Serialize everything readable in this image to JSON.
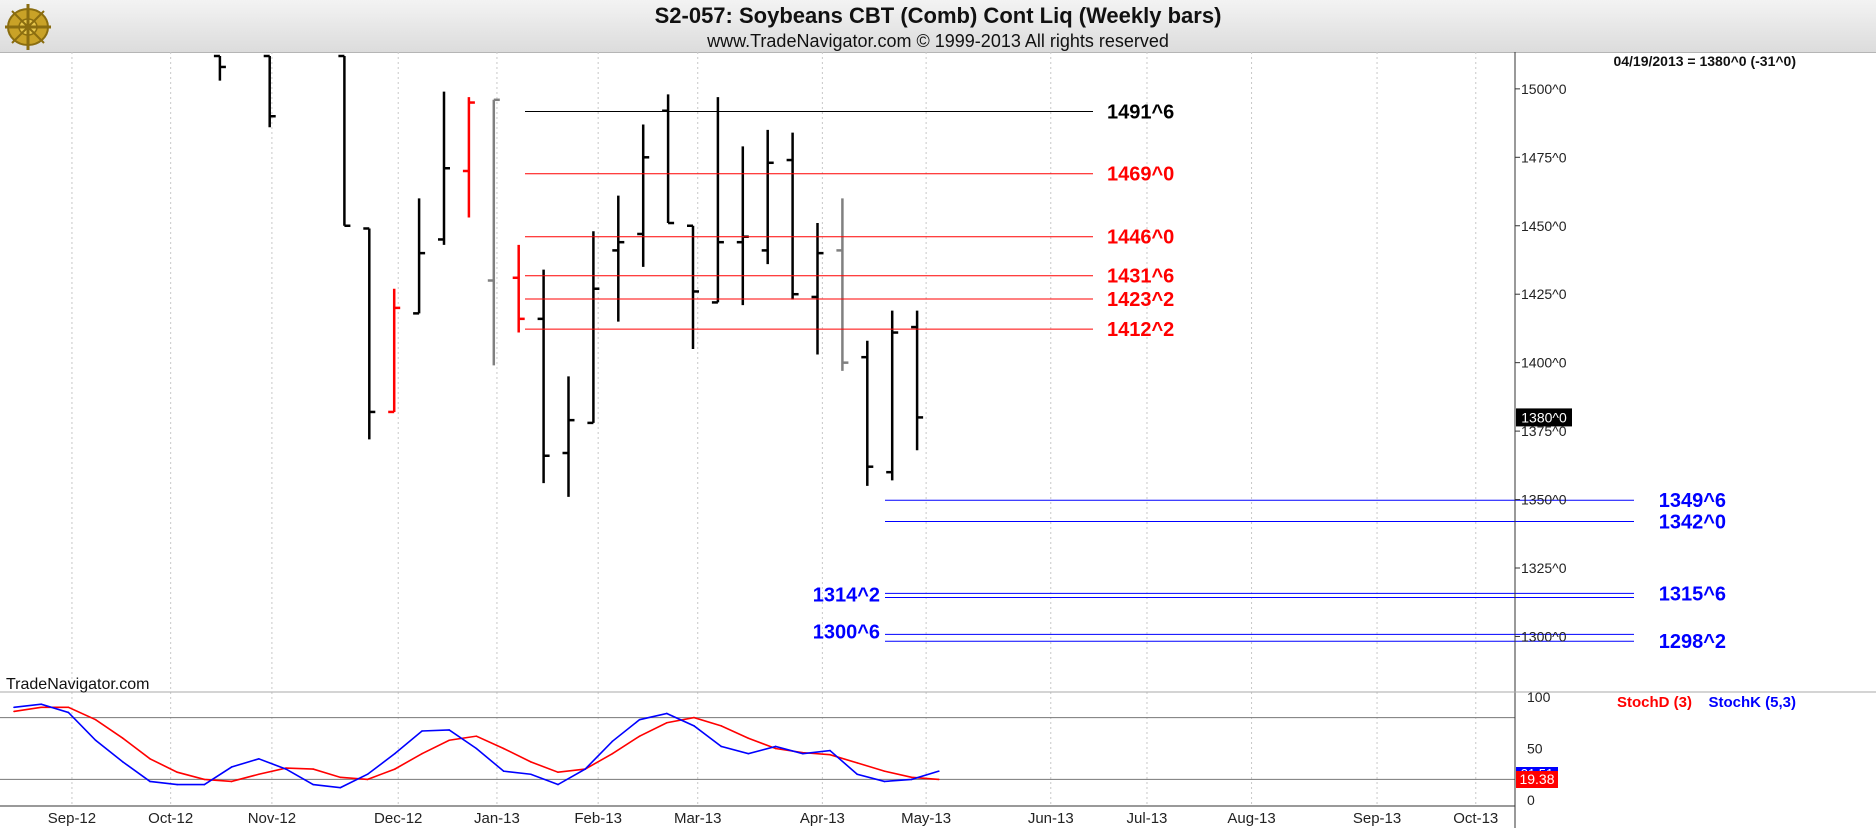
{
  "header": {
    "title": "S2-057:  Soybeans CBT (Comb) Cont Liq  (Weekly bars)",
    "subtitle": "www.TradeNavigator.com © 1999-2013 All rights reserved"
  },
  "last_price_info": "04/19/2013 = 1380^0 (-31^0)",
  "last_price_badge": "1380^0",
  "watermark": "TradeNavigator.com",
  "colors": {
    "up_bar": "#000000",
    "down_bar": "#ff0000",
    "neutral_bar": "#808080",
    "resistance": "#ff0000",
    "support": "#0000ff",
    "stoch_d": "#ff0000",
    "stoch_k": "#0000ff",
    "header_bg": "#e5e5e5"
  },
  "chart_data": [
    {
      "type": "ohlc",
      "title": "S2-057:  Soybeans CBT (Comb) Cont Liq  (Weekly bars)",
      "x_labels": [
        "Sep-12",
        "Oct-12",
        "Nov-12",
        "Dec-12",
        "Jan-13",
        "Feb-13",
        "Mar-13",
        "Apr-13",
        "May-13",
        "Jun-13",
        "Jul-13",
        "Aug-13",
        "Sep-13",
        "Oct-13"
      ],
      "y_ticks": [
        "1300^0",
        "1325^0",
        "1350^0",
        "1375^0",
        "1400^0",
        "1425^0",
        "1450^0",
        "1475^0",
        "1500^0"
      ],
      "ylim": [
        1283,
        1512
      ],
      "grid": "vertical dotted at each month",
      "bars": [
        {
          "week": 6,
          "open": 1512,
          "high": 1512,
          "low": 1503,
          "close": 1508,
          "color": "black"
        },
        {
          "week": 8,
          "open": 1512,
          "high": 1512,
          "low": 1486,
          "close": 1490,
          "color": "black"
        },
        {
          "week": 11,
          "open": 1512,
          "high": 1512,
          "low": 1450,
          "close": 1450,
          "color": "black"
        },
        {
          "week": 12,
          "open": 1449,
          "high": 1449,
          "low": 1372,
          "close": 1382,
          "color": "black"
        },
        {
          "week": 13,
          "open": 1382,
          "high": 1427,
          "low": 1382,
          "close": 1420,
          "color": "red"
        },
        {
          "week": 14,
          "open": 1418,
          "high": 1460,
          "low": 1418,
          "close": 1440,
          "color": "black"
        },
        {
          "week": 15,
          "open": 1445,
          "high": 1499,
          "low": 1443,
          "close": 1471,
          "color": "black"
        },
        {
          "week": 16,
          "open": 1470,
          "high": 1497,
          "low": 1453,
          "close": 1495,
          "color": "red"
        },
        {
          "week": 17,
          "open": 1430,
          "high": 1496,
          "low": 1399,
          "close": 1496,
          "color": "gray"
        },
        {
          "week": 18,
          "open": 1431,
          "high": 1443,
          "low": 1411,
          "close": 1416,
          "color": "red"
        },
        {
          "week": 19,
          "open": 1416,
          "high": 1434,
          "low": 1356,
          "close": 1366,
          "color": "black"
        },
        {
          "week": 20,
          "open": 1367,
          "high": 1395,
          "low": 1351,
          "close": 1379,
          "color": "black"
        },
        {
          "week": 21,
          "open": 1378,
          "high": 1448,
          "low": 1378,
          "close": 1427,
          "color": "black"
        },
        {
          "week": 22,
          "open": 1441,
          "high": 1461,
          "low": 1415,
          "close": 1444,
          "color": "black"
        },
        {
          "week": 23,
          "open": 1447,
          "high": 1487,
          "low": 1435,
          "close": 1475,
          "color": "black"
        },
        {
          "week": 24,
          "open": 1492,
          "high": 1498,
          "low": 1451,
          "close": 1451,
          "color": "black"
        },
        {
          "week": 25,
          "open": 1450,
          "high": 1450,
          "low": 1405,
          "close": 1426,
          "color": "black"
        },
        {
          "week": 26,
          "open": 1422,
          "high": 1497,
          "low": 1422,
          "close": 1444,
          "color": "black"
        },
        {
          "week": 27,
          "open": 1444,
          "high": 1479,
          "low": 1421,
          "close": 1446,
          "color": "black"
        },
        {
          "week": 28,
          "open": 1441,
          "high": 1485,
          "low": 1436,
          "close": 1473,
          "color": "black"
        },
        {
          "week": 29,
          "open": 1474,
          "high": 1484,
          "low": 1423,
          "close": 1425,
          "color": "black"
        },
        {
          "week": 30,
          "open": 1424,
          "high": 1451,
          "low": 1403,
          "close": 1440,
          "color": "black"
        },
        {
          "week": 31,
          "open": 1441,
          "high": 1460,
          "low": 1397,
          "close": 1400,
          "color": "gray"
        },
        {
          "week": 32,
          "open": 1402,
          "high": 1408,
          "low": 1355,
          "close": 1362,
          "color": "black"
        },
        {
          "week": 33,
          "open": 1360,
          "high": 1419,
          "low": 1357,
          "close": 1411,
          "color": "black"
        },
        {
          "week": 34,
          "open": 1413,
          "high": 1419,
          "low": 1368,
          "close": 1380,
          "color": "black"
        }
      ],
      "levels": [
        {
          "label": "1491^6",
          "value": 1491.75,
          "color": "black",
          "side": "right"
        },
        {
          "label": "1469^0",
          "value": 1469.0,
          "color": "red",
          "side": "right"
        },
        {
          "label": "1446^0",
          "value": 1446.0,
          "color": "red",
          "side": "right"
        },
        {
          "label": "1431^6",
          "value": 1431.75,
          "color": "red",
          "side": "right"
        },
        {
          "label": "1423^2",
          "value": 1423.25,
          "color": "red",
          "side": "right"
        },
        {
          "label": "1412^2",
          "value": 1412.25,
          "color": "red",
          "side": "right"
        },
        {
          "label": "1349^6",
          "value": 1349.75,
          "color": "blue",
          "side": "far"
        },
        {
          "label": "1342^0",
          "value": 1342.0,
          "color": "blue",
          "side": "far"
        },
        {
          "label": "1315^6",
          "value": 1315.75,
          "color": "blue",
          "side": "far"
        },
        {
          "label": "1314^2",
          "value": 1314.25,
          "color": "blue",
          "side": "left"
        },
        {
          "label": "1300^6",
          "value": 1300.75,
          "color": "blue",
          "side": "left"
        },
        {
          "label": "1298^2",
          "value": 1298.25,
          "color": "blue",
          "side": "far"
        }
      ],
      "last_close": 1380
    },
    {
      "type": "line",
      "x_labels": [
        "Sep-12",
        "Oct-12",
        "Nov-12",
        "Dec-12",
        "Jan-13",
        "Feb-13",
        "Mar-13",
        "Apr-13",
        "May-13",
        "Jun-13",
        "Jul-13",
        "Aug-13",
        "Sep-13",
        "Oct-13"
      ],
      "y_ticks": [
        "0",
        "50",
        "100"
      ],
      "ylim": [
        0,
        100
      ],
      "reference_lines": [
        80,
        20
      ],
      "legend_position": "top-right",
      "series": [
        {
          "name": "StochD (3)",
          "color": "red",
          "values": [
            86,
            90,
            90,
            78,
            60,
            40,
            27,
            20,
            18,
            25,
            31,
            30,
            22,
            20,
            30,
            45,
            58,
            62,
            50,
            37,
            27,
            30,
            45,
            62,
            75,
            80,
            72,
            60,
            50,
            46,
            44,
            36,
            28,
            22,
            20
          ]
        },
        {
          "name": "StochK (5,3)",
          "color": "blue",
          "values": [
            90,
            93,
            85,
            58,
            37,
            18,
            15,
            15,
            32,
            40,
            30,
            15,
            12,
            25,
            45,
            67,
            68,
            50,
            28,
            25,
            15,
            30,
            57,
            78,
            84,
            72,
            52,
            45,
            52,
            45,
            48,
            25,
            18,
            20,
            28
          ]
        }
      ],
      "last_values": [
        "21.51",
        "19.38"
      ]
    }
  ]
}
